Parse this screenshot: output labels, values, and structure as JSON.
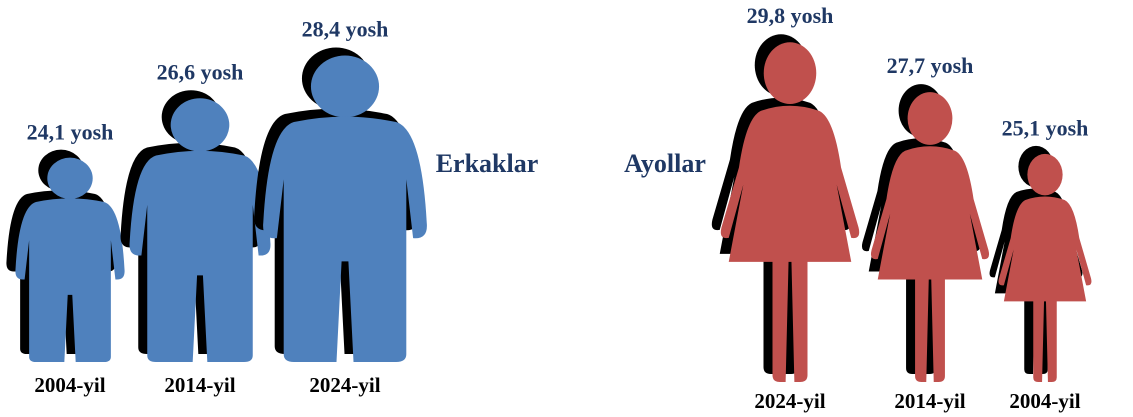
{
  "chart_data": [
    {
      "type": "pictograph",
      "figure": "man",
      "color": "#4f81bd",
      "name": "Erkaklar",
      "categories": [
        "2004-yil",
        "2014-yil",
        "2024-yil"
      ],
      "values": [
        24.1,
        26.6,
        28.4
      ],
      "value_labels": [
        "24,1 yosh",
        "26,6 yosh",
        "28,4 yosh"
      ]
    },
    {
      "type": "pictograph",
      "figure": "woman",
      "color": "#c0504d",
      "name": "Ayollar",
      "categories": [
        "2024-yil",
        "2014-yil",
        "2004-yil"
      ],
      "values": [
        29.8,
        27.7,
        25.1
      ],
      "value_labels": [
        "29,8 yosh",
        "27,7 yosh",
        "25,1 yosh"
      ]
    }
  ]
}
